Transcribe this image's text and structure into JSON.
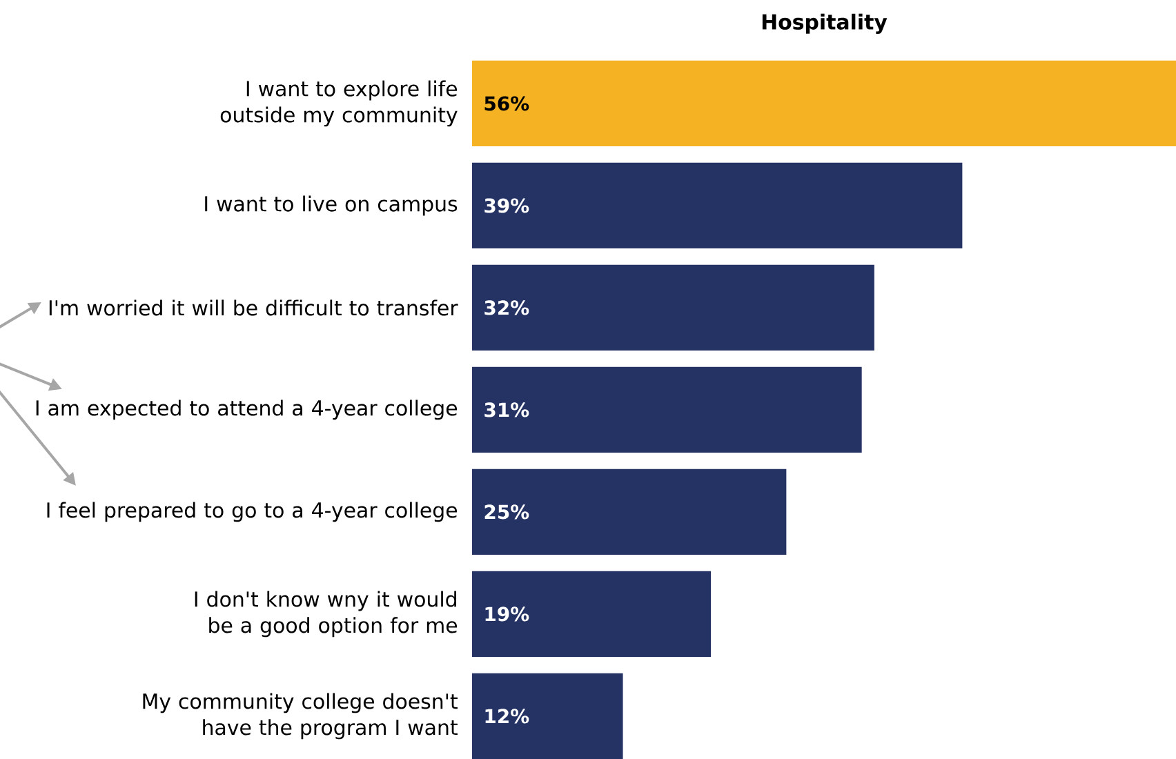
{
  "chart_data": {
    "type": "bar",
    "orientation": "horizontal",
    "title": "Hospitality",
    "categories": [
      "I want to explore life outside my community",
      "I want to live on campus",
      "I'm worried it will be difficult to transfer",
      "I am expected to attend a 4-year college",
      "I feel prepared to go to a 4-year college",
      "I don't know wny it would be a good option for me",
      "My community college doesn't have the program I want"
    ],
    "values": [
      56,
      39,
      32,
      31,
      25,
      19,
      12
    ],
    "value_labels": [
      "56%",
      "39%",
      "32%",
      "31%",
      "25%",
      "19%",
      "12%"
    ],
    "colors": [
      "#f5b324",
      "#253264",
      "#253264",
      "#253264",
      "#253264",
      "#253264",
      "#253264"
    ]
  }
}
